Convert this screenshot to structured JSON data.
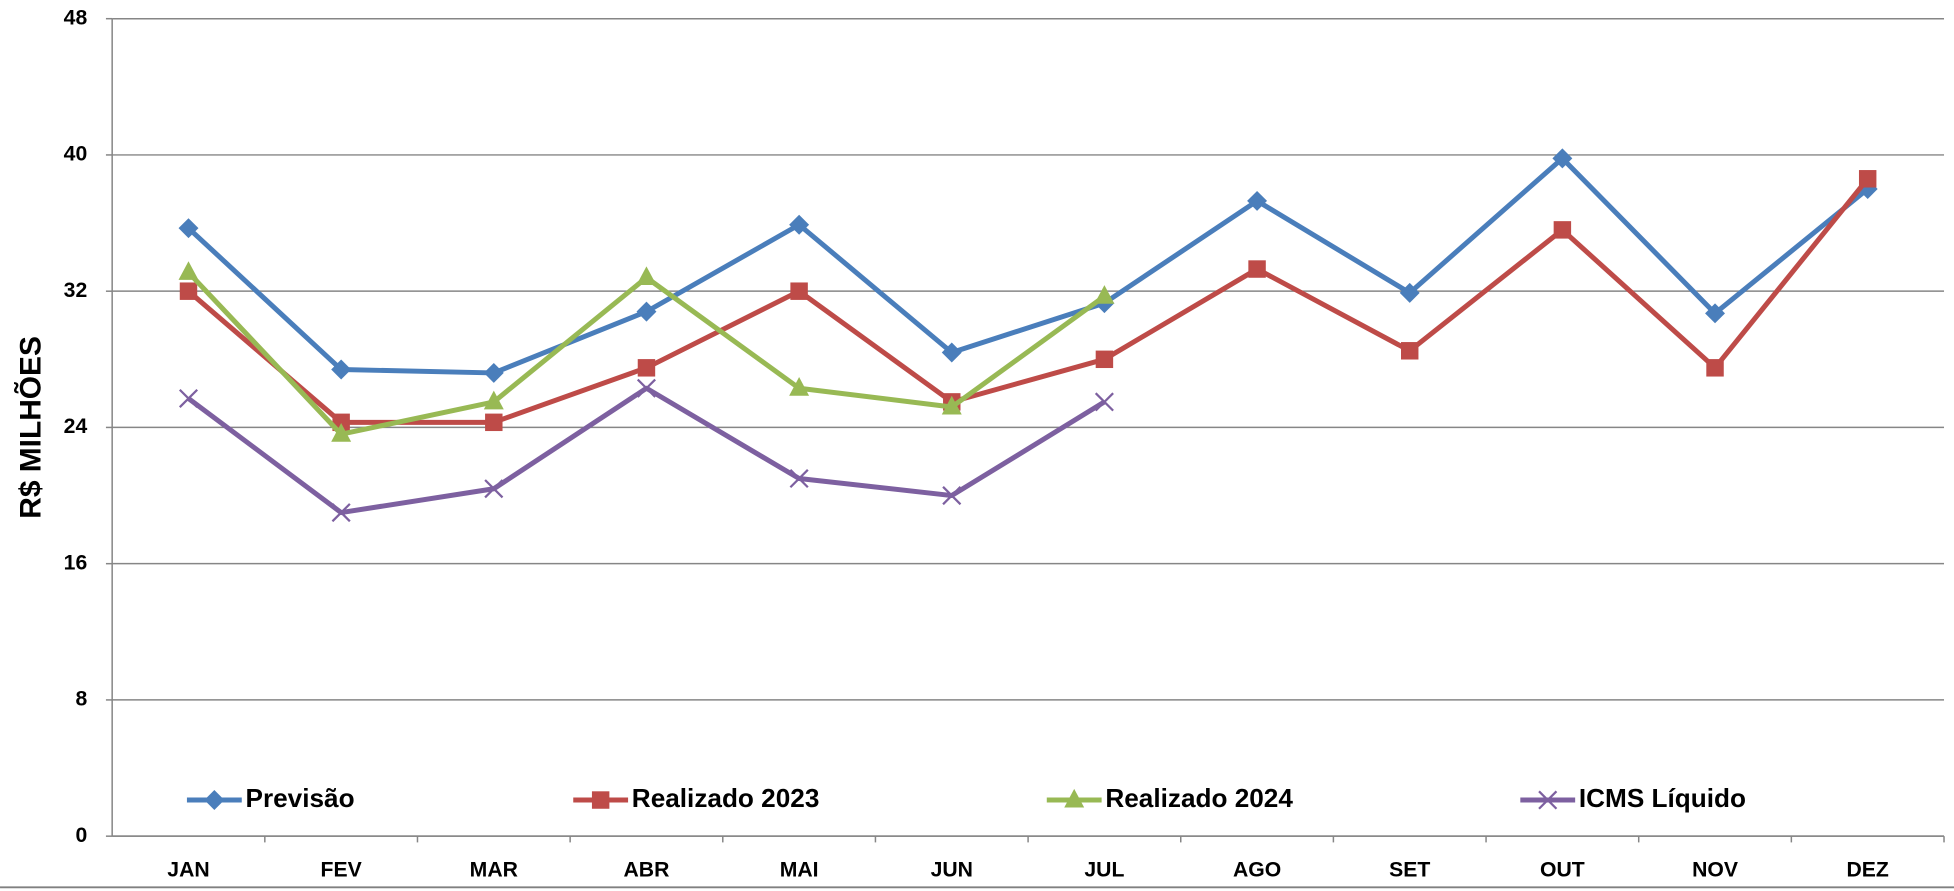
{
  "chart_data": {
    "type": "line",
    "y_label": "R$ MILHÕES",
    "categories": [
      "JAN",
      "FEV",
      "MAR",
      "ABR",
      "MAI",
      "JUN",
      "JUL",
      "AGO",
      "SET",
      "OUT",
      "NOV",
      "DEZ"
    ],
    "series": [
      {
        "name": "Previsão",
        "color": "#4a7ebb",
        "marker": "diamond",
        "values": [
          35.7,
          27.4,
          27.2,
          30.8,
          35.9,
          28.4,
          31.3,
          37.3,
          31.9,
          39.8,
          30.7,
          38.0
        ]
      },
      {
        "name": "Realizado 2023",
        "color": "#be4b48",
        "marker": "square",
        "values": [
          32.0,
          24.3,
          24.3,
          27.5,
          32.0,
          25.5,
          28.0,
          33.3,
          28.5,
          35.6,
          27.5,
          38.6
        ]
      },
      {
        "name": "Realizado 2024",
        "color": "#98b954",
        "marker": "triangle",
        "values": [
          33.1,
          23.6,
          25.5,
          32.8,
          26.3,
          25.2,
          31.7,
          null,
          null,
          null,
          null,
          null
        ]
      },
      {
        "name": "ICMS Líquido",
        "color": "#7d60a0",
        "marker": "x",
        "values": [
          25.7,
          19.0,
          20.4,
          26.3,
          21.0,
          20.0,
          25.5,
          null,
          null,
          null,
          null,
          null
        ]
      }
    ],
    "ylim": [
      0,
      48
    ],
    "yticks": [
      0,
      8,
      16,
      24,
      32,
      40,
      48
    ],
    "grid": true,
    "legend": "bottom"
  }
}
